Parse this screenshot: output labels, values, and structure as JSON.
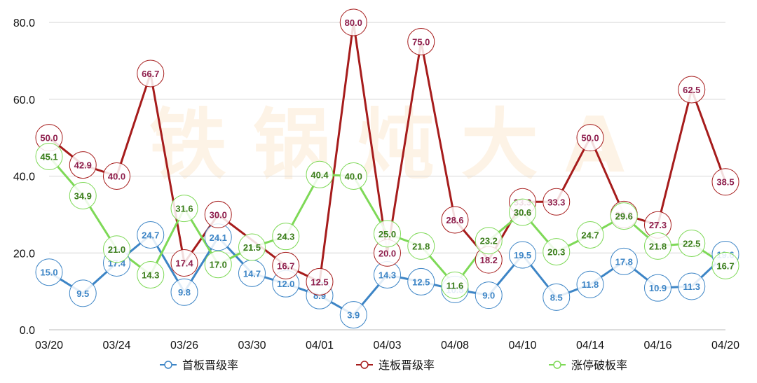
{
  "chart_data": {
    "type": "line",
    "title": "",
    "xlabel": "",
    "ylabel": "",
    "ylim": [
      0,
      80
    ],
    "yticks": [
      "0.0",
      "20.0",
      "40.0",
      "60.0",
      "80.0"
    ],
    "grid": true,
    "legend": "bottom",
    "watermark": "铁 锅 炖 大 A",
    "x": [
      "03/20",
      "03/21",
      "03/24",
      "03/25",
      "03/26",
      "03/27",
      "03/30",
      "03/31",
      "04/01",
      "04/02",
      "04/03",
      "04/07",
      "04/08",
      "04/09",
      "04/10",
      "04/13",
      "04/14",
      "04/15",
      "04/16",
      "04/17",
      "04/20"
    ],
    "xtick_labels": [
      "03/20",
      "03/24",
      "03/26",
      "03/30",
      "04/01",
      "04/03",
      "04/08",
      "04/10",
      "04/14",
      "04/16",
      "04/20"
    ],
    "series": [
      {
        "name": "首板晋级率",
        "color": "#3d85c6",
        "values": [
          15.0,
          9.5,
          17.4,
          24.7,
          9.8,
          24.1,
          14.7,
          12.0,
          8.9,
          3.9,
          14.3,
          12.5,
          10.5,
          9.0,
          19.5,
          8.5,
          11.8,
          17.8,
          10.9,
          11.3,
          19.6
        ]
      },
      {
        "name": "连板晋级率",
        "color": "#a61c1c",
        "label_color": "#8e1f4d",
        "values": [
          50.0,
          42.9,
          40.0,
          66.7,
          17.4,
          30.0,
          null,
          16.7,
          12.5,
          80.0,
          20.0,
          75.0,
          28.6,
          18.2,
          33.3,
          33.3,
          50.0,
          30.0,
          27.3,
          62.5,
          38.5
        ]
      },
      {
        "name": "涨停破板率",
        "color": "#7ed957",
        "label_color": "#3a7d1a",
        "values": [
          45.1,
          34.9,
          21.0,
          14.3,
          31.6,
          17.0,
          21.5,
          24.3,
          40.4,
          40.0,
          25.0,
          21.8,
          11.6,
          23.2,
          30.6,
          20.3,
          24.7,
          29.6,
          21.8,
          22.5,
          16.7
        ]
      }
    ]
  }
}
